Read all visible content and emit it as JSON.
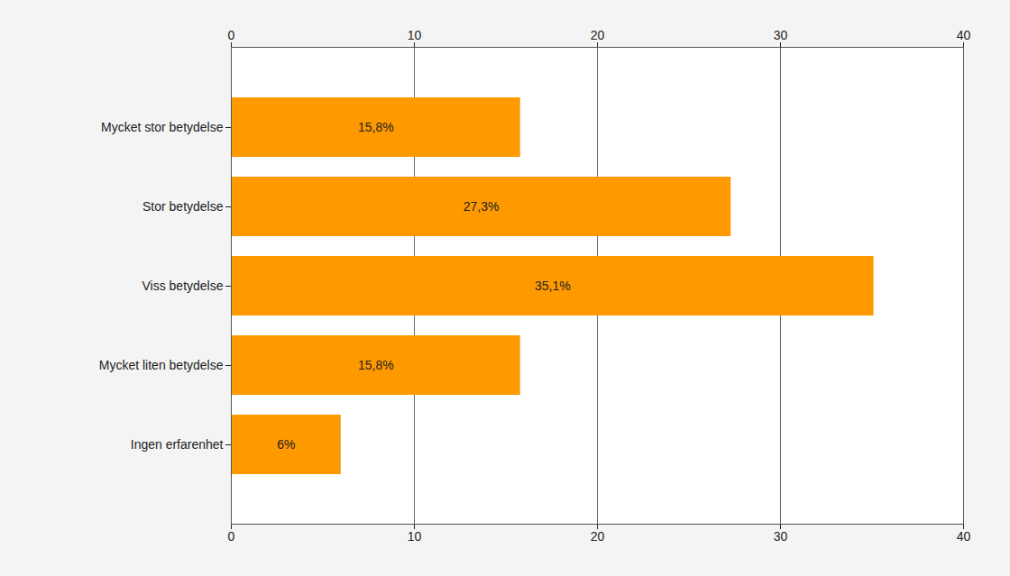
{
  "chart_data": {
    "type": "bar",
    "orientation": "horizontal",
    "categories": [
      "Mycket stor betydelse",
      "Stor betydelse",
      "Viss betydelse",
      "Mycket liten betydelse",
      "Ingen erfarenhet"
    ],
    "values": [
      15.8,
      27.3,
      35.1,
      15.8,
      6
    ],
    "value_labels": [
      "15,8%",
      "27,3%",
      "35,1%",
      "15,8%",
      "6%"
    ],
    "data_labels": true,
    "color": "#ff9900",
    "xlim": [
      0,
      40
    ],
    "xticks": [
      0,
      10,
      20,
      30,
      40
    ],
    "grid": true
  }
}
